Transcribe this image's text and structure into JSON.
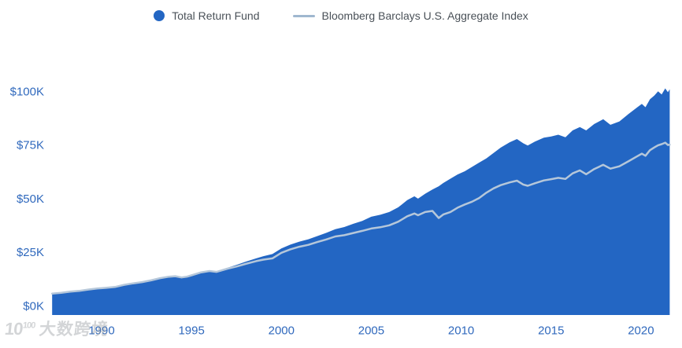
{
  "legend": {
    "items": [
      {
        "label": "Total Return Fund",
        "marker": "circle",
        "color": "#2366c3"
      },
      {
        "label": "Bloomberg Barclays U.S. Aggregate Index",
        "marker": "line",
        "color": "#9fb7cf"
      }
    ]
  },
  "watermark": {
    "logo": "10",
    "logo_sup": "100",
    "brand": "大数跨境"
  },
  "colors": {
    "fund_area": "#2366c3",
    "index_line": "#b5c7da",
    "axis_label": "#3069bd",
    "legend_text": "#4a5158",
    "background": "#ffffff"
  },
  "chart_data": {
    "type": "area",
    "title": "",
    "xlabel": "",
    "ylabel": "",
    "x_range": [
      1987.25,
      2021.6
    ],
    "y_range_k": [
      0,
      110
    ],
    "grid": false,
    "legend_position": "top-center",
    "y_ticks": [
      {
        "value": 0,
        "label": "$0K"
      },
      {
        "value": 25,
        "label": "$25K"
      },
      {
        "value": 50,
        "label": "$50K"
      },
      {
        "value": 75,
        "label": "$75K"
      },
      {
        "value": 100,
        "label": "$100K"
      }
    ],
    "x_ticks": [
      {
        "value": 1990,
        "label": "1990"
      },
      {
        "value": 1995,
        "label": "1995"
      },
      {
        "value": 2000,
        "label": "2000"
      },
      {
        "value": 2005,
        "label": "2005"
      },
      {
        "value": 2010,
        "label": "2010"
      },
      {
        "value": 2015,
        "label": "2015"
      },
      {
        "value": 2020,
        "label": "2020"
      }
    ],
    "series": [
      {
        "name": "Total Return Fund",
        "render": "area",
        "color": "#2366c3",
        "unit": "$K",
        "points": [
          [
            1987.25,
            10.0
          ],
          [
            1987.75,
            10.2
          ],
          [
            1988.25,
            10.7
          ],
          [
            1988.75,
            11.0
          ],
          [
            1989.25,
            11.6
          ],
          [
            1989.75,
            12.1
          ],
          [
            1990.25,
            12.4
          ],
          [
            1990.75,
            12.8
          ],
          [
            1991.25,
            13.8
          ],
          [
            1991.75,
            14.5
          ],
          [
            1992.25,
            15.1
          ],
          [
            1992.75,
            15.9
          ],
          [
            1993.25,
            16.9
          ],
          [
            1993.75,
            17.6
          ],
          [
            1994.1,
            17.9
          ],
          [
            1994.45,
            17.3
          ],
          [
            1994.75,
            17.7
          ],
          [
            1995.0,
            18.4
          ],
          [
            1995.5,
            19.8
          ],
          [
            1996.0,
            20.6
          ],
          [
            1996.4,
            20.3
          ],
          [
            1997.0,
            22.0
          ],
          [
            1997.5,
            23.3
          ],
          [
            1998.0,
            24.8
          ],
          [
            1998.6,
            26.4
          ],
          [
            1999.0,
            27.4
          ],
          [
            1999.5,
            28.4
          ],
          [
            2000.0,
            31.0
          ],
          [
            2000.5,
            32.8
          ],
          [
            2001.0,
            34.2
          ],
          [
            2001.5,
            35.3
          ],
          [
            2002.0,
            36.8
          ],
          [
            2002.5,
            38.3
          ],
          [
            2003.0,
            40.0
          ],
          [
            2003.5,
            41.0
          ],
          [
            2004.0,
            42.5
          ],
          [
            2004.5,
            43.8
          ],
          [
            2005.0,
            45.8
          ],
          [
            2005.5,
            46.7
          ],
          [
            2006.0,
            48.0
          ],
          [
            2006.5,
            50.2
          ],
          [
            2007.0,
            53.5
          ],
          [
            2007.4,
            55.3
          ],
          [
            2007.6,
            54.2
          ],
          [
            2008.0,
            56.5
          ],
          [
            2008.4,
            58.5
          ],
          [
            2008.75,
            60.0
          ],
          [
            2009.0,
            61.5
          ],
          [
            2009.4,
            63.5
          ],
          [
            2009.8,
            65.5
          ],
          [
            2010.2,
            67.0
          ],
          [
            2010.6,
            69.0
          ],
          [
            2011.0,
            71.0
          ],
          [
            2011.4,
            73.0
          ],
          [
            2011.8,
            75.5
          ],
          [
            2012.2,
            78.0
          ],
          [
            2012.7,
            80.5
          ],
          [
            2013.1,
            82.0
          ],
          [
            2013.45,
            80.0
          ],
          [
            2013.7,
            79.0
          ],
          [
            2014.1,
            80.8
          ],
          [
            2014.6,
            82.6
          ],
          [
            2015.0,
            83.2
          ],
          [
            2015.4,
            84.0
          ],
          [
            2015.8,
            82.8
          ],
          [
            2016.2,
            86.0
          ],
          [
            2016.6,
            87.6
          ],
          [
            2016.95,
            86.0
          ],
          [
            2017.4,
            89.0
          ],
          [
            2017.9,
            91.2
          ],
          [
            2018.3,
            88.6
          ],
          [
            2018.8,
            90.2
          ],
          [
            2019.3,
            93.6
          ],
          [
            2019.8,
            96.8
          ],
          [
            2020.05,
            98.4
          ],
          [
            2020.25,
            96.8
          ],
          [
            2020.5,
            100.5
          ],
          [
            2020.75,
            102.3
          ],
          [
            2020.95,
            104.2
          ],
          [
            2021.15,
            102.8
          ],
          [
            2021.35,
            105.6
          ],
          [
            2021.5,
            103.8
          ],
          [
            2021.6,
            105.2
          ]
        ]
      },
      {
        "name": "Bloomberg Barclays U.S. Aggregate Index",
        "render": "line",
        "color": "#b5c7da",
        "unit": "$K",
        "points": [
          [
            1987.25,
            10.0
          ],
          [
            1987.75,
            10.35
          ],
          [
            1988.25,
            10.9
          ],
          [
            1988.75,
            11.25
          ],
          [
            1989.25,
            11.85
          ],
          [
            1989.75,
            12.35
          ],
          [
            1990.25,
            12.65
          ],
          [
            1990.75,
            13.05
          ],
          [
            1991.25,
            14.05
          ],
          [
            1991.75,
            14.75
          ],
          [
            1992.25,
            15.35
          ],
          [
            1992.75,
            16.15
          ],
          [
            1993.25,
            17.15
          ],
          [
            1993.75,
            17.85
          ],
          [
            1994.1,
            18.1
          ],
          [
            1994.45,
            17.5
          ],
          [
            1994.75,
            17.85
          ],
          [
            1995.0,
            18.5
          ],
          [
            1995.5,
            19.8
          ],
          [
            1996.0,
            20.5
          ],
          [
            1996.4,
            20.1
          ],
          [
            1997.0,
            21.6
          ],
          [
            1997.5,
            22.6
          ],
          [
            1998.0,
            23.8
          ],
          [
            1998.6,
            25.1
          ],
          [
            1999.0,
            25.8
          ],
          [
            1999.5,
            26.4
          ],
          [
            2000.0,
            29.0
          ],
          [
            2000.5,
            30.6
          ],
          [
            2001.0,
            31.8
          ],
          [
            2001.5,
            32.7
          ],
          [
            2002.0,
            34.0
          ],
          [
            2002.5,
            35.2
          ],
          [
            2003.0,
            36.6
          ],
          [
            2003.5,
            37.2
          ],
          [
            2004.0,
            38.2
          ],
          [
            2004.5,
            39.2
          ],
          [
            2005.0,
            40.3
          ],
          [
            2005.5,
            40.9
          ],
          [
            2006.0,
            41.8
          ],
          [
            2006.5,
            43.5
          ],
          [
            2007.0,
            46.0
          ],
          [
            2007.4,
            47.3
          ],
          [
            2007.6,
            46.5
          ],
          [
            2008.0,
            48.0
          ],
          [
            2008.4,
            48.5
          ],
          [
            2008.75,
            45.2
          ],
          [
            2009.0,
            46.8
          ],
          [
            2009.4,
            48.0
          ],
          [
            2009.8,
            50.0
          ],
          [
            2010.2,
            51.5
          ],
          [
            2010.6,
            52.8
          ],
          [
            2011.0,
            54.5
          ],
          [
            2011.4,
            57.0
          ],
          [
            2011.8,
            59.0
          ],
          [
            2012.2,
            60.5
          ],
          [
            2012.7,
            61.8
          ],
          [
            2013.1,
            62.6
          ],
          [
            2013.45,
            60.8
          ],
          [
            2013.7,
            60.2
          ],
          [
            2014.1,
            61.4
          ],
          [
            2014.6,
            62.7
          ],
          [
            2015.0,
            63.3
          ],
          [
            2015.4,
            63.9
          ],
          [
            2015.8,
            63.4
          ],
          [
            2016.2,
            66.0
          ],
          [
            2016.6,
            67.4
          ],
          [
            2016.95,
            65.6
          ],
          [
            2017.4,
            68.0
          ],
          [
            2017.9,
            70.0
          ],
          [
            2018.3,
            68.2
          ],
          [
            2018.8,
            69.3
          ],
          [
            2019.3,
            71.6
          ],
          [
            2019.8,
            74.0
          ],
          [
            2020.05,
            75.2
          ],
          [
            2020.25,
            74.2
          ],
          [
            2020.5,
            76.8
          ],
          [
            2020.75,
            78.1
          ],
          [
            2020.95,
            79.1
          ],
          [
            2021.15,
            79.6
          ],
          [
            2021.35,
            80.3
          ],
          [
            2021.5,
            79.2
          ],
          [
            2021.6,
            79.4
          ]
        ]
      }
    ]
  }
}
